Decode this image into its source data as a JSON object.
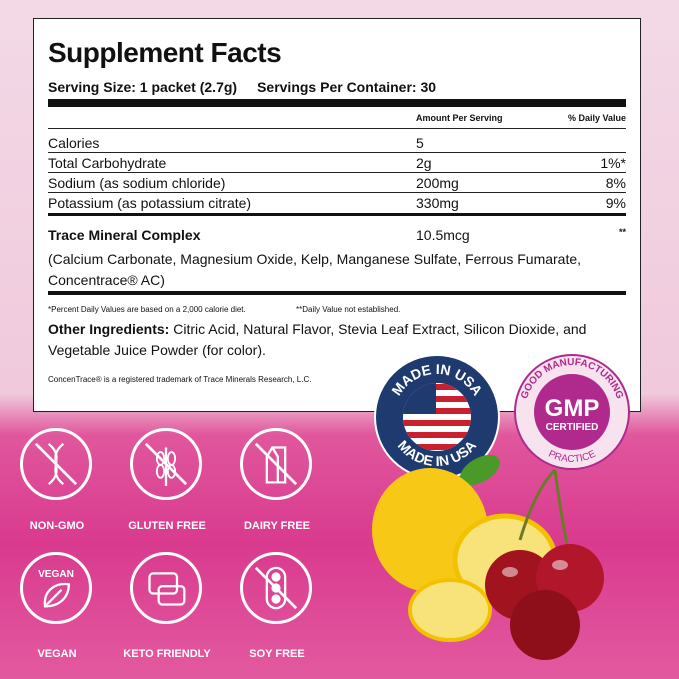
{
  "facts": {
    "title": "Supplement Facts",
    "serving_size": "Serving Size: 1 packet (2.7g)",
    "servings_per_container": "Servings Per Container: 30",
    "col_amount": "Amount Per Serving",
    "col_dv": "% Daily Value",
    "rows": [
      {
        "name": "Calories",
        "amount": "5",
        "dv": ""
      },
      {
        "name": "Total Carbohydrate",
        "amount": "2g",
        "dv": "1%*"
      },
      {
        "name": "Sodium (as sodium chloride)",
        "amount": "200mg",
        "dv": "8%"
      },
      {
        "name": "Potassium (as potassium citrate)",
        "amount": "330mg",
        "dv": "9%"
      }
    ],
    "trace": {
      "name": "Trace Mineral Complex",
      "amount": "10.5mcg",
      "dv": "**"
    },
    "trace_detail": "(Calcium Carbonate, Magnesium Oxide, Kelp, Manganese Sulfate, Ferrous Fumarate, Concentrace® AC)",
    "footnote1": "*Percent Daily Values are based on a 2,000 calorie diet.",
    "footnote2": "**Daily Value not established.",
    "other_label": "Other Ingredients:",
    "other_text": " Citric Acid, Natural Flavor, Stevia Leaf Extract, Silicon Dioxide, and  Vegetable Juice Powder (for color).",
    "trademark": "ConcenTrace® is a registered trademark of Trace Minerals Research, L.C."
  },
  "badges": {
    "usa_top": "MADE IN USA",
    "usa_bottom": "MADE IN USA",
    "gmp_ring_top": "GOOD MANUFACTURING",
    "gmp_ring_bottom": "PRACTICE",
    "gmp": "GMP",
    "gmp_sub": "CERTIFIED"
  },
  "features": [
    {
      "label": "NON-GMO",
      "icon": "dna-icon"
    },
    {
      "label": "GLUTEN FREE",
      "icon": "wheat-icon"
    },
    {
      "label": "DAIRY FREE",
      "icon": "milk-carton-icon"
    },
    {
      "label": "VEGAN",
      "icon": "leaf-icon",
      "icon_text": "VEGAN"
    },
    {
      "label": "KETO FRIENDLY",
      "icon": "keto-chat-icon"
    },
    {
      "label": "SOY FREE",
      "icon": "soybean-icon"
    }
  ],
  "colors": {
    "accent": "#d93a8e",
    "navy": "#1f3a6e",
    "gmp": "#b02a8e"
  }
}
